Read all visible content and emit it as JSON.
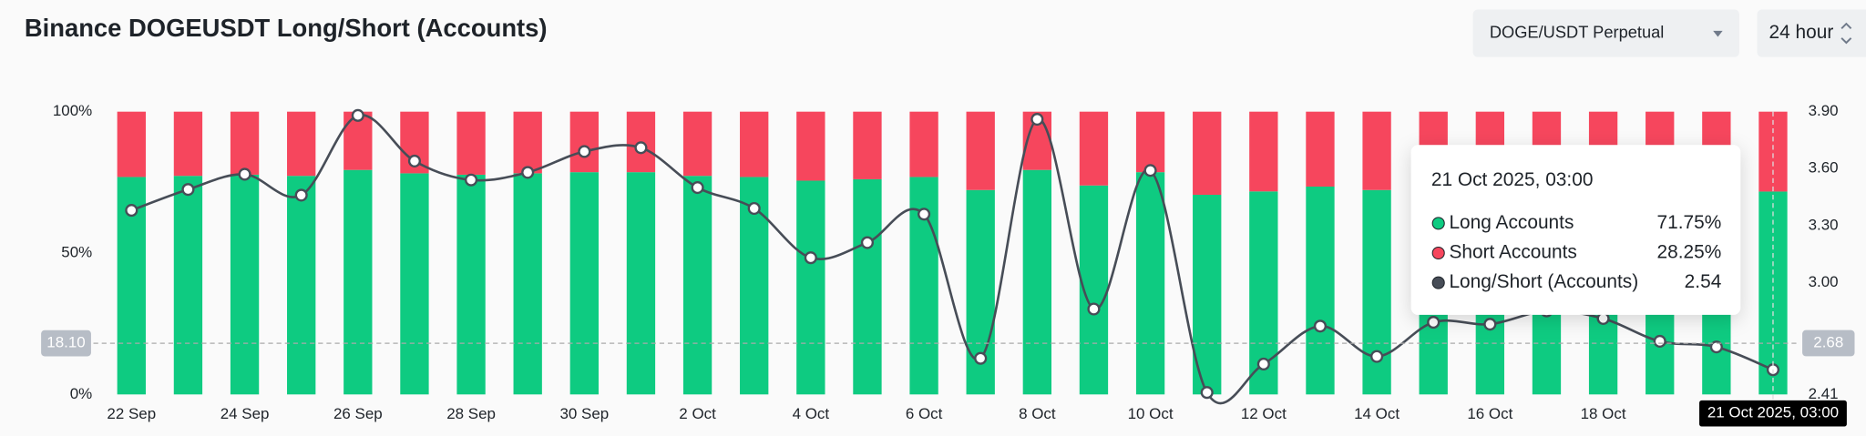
{
  "header": {
    "dropdown": "DOGE/USDT Perpetual",
    "period": "24 hour"
  },
  "chart_data": {
    "type": "stacked-bar-line",
    "title": "Binance DOGEUSDT Long/Short (Accounts)",
    "categories": [
      "22 Sep",
      null,
      "24 Sep",
      null,
      "26 Sep",
      null,
      "28 Sep",
      null,
      "30 Sep",
      null,
      "2 Oct",
      null,
      "4 Oct",
      null,
      "6 Oct",
      null,
      "8 Oct",
      null,
      "10 Oct",
      null,
      "12 Oct",
      null,
      "14 Oct",
      null,
      "16 Oct",
      null,
      "18 Oct",
      null,
      null,
      null
    ],
    "series": [
      {
        "name": "Long Accounts",
        "color": "#0ecb81",
        "values": [
          76.9,
          77.3,
          77.7,
          77.3,
          79.4,
          78.2,
          77.7,
          78.2,
          78.6,
          78.6,
          77.3,
          76.9,
          75.6,
          76.1,
          76.9,
          72.3,
          79.4,
          73.9,
          78.6,
          70.6,
          71.8,
          73.5,
          72.3,
          73.6,
          73.5,
          74.0,
          73.8,
          72.9,
          72.7,
          71.75
        ]
      },
      {
        "name": "Short Accounts",
        "color": "#f6465d",
        "values": [
          23.1,
          22.7,
          22.3,
          22.7,
          20.6,
          21.8,
          22.3,
          21.8,
          21.4,
          21.4,
          22.7,
          23.1,
          24.4,
          23.9,
          23.1,
          27.7,
          20.6,
          26.1,
          21.4,
          29.4,
          28.2,
          26.5,
          27.7,
          26.4,
          26.5,
          26.0,
          26.2,
          27.1,
          27.3,
          28.25
        ]
      },
      {
        "name": "Long/Short (Accounts)",
        "color": "#474d57",
        "axis": "y2",
        "values": [
          3.38,
          3.49,
          3.57,
          3.46,
          3.88,
          3.64,
          3.54,
          3.58,
          3.69,
          3.71,
          3.5,
          3.39,
          3.13,
          3.21,
          3.36,
          2.6,
          3.86,
          2.86,
          3.59,
          2.42,
          2.57,
          2.77,
          2.61,
          2.79,
          2.78,
          2.85,
          2.81,
          2.69,
          2.66,
          2.54
        ]
      }
    ],
    "ylim": [
      0,
      100
    ],
    "yticks": [
      {
        "value": 0,
        "label": "0%"
      },
      {
        "value": 50,
        "label": "50%"
      },
      {
        "value": 100,
        "label": "100%"
      }
    ],
    "y2lim": [
      2.41,
      3.9
    ],
    "y2ticks": [
      2.41,
      {
        "value": 3.0,
        "label": "3.00"
      },
      {
        "value": 3.3,
        "label": "3.30"
      },
      {
        "value": 3.6,
        "label": "3.60"
      },
      {
        "value": 3.9,
        "label": "3.90"
      }
    ],
    "grid": false,
    "crosshair": {
      "y": {
        "value": 18.1,
        "label": "18.10"
      },
      "y2": 2.68,
      "x_label": "21 Oct 2025, 03:00"
    },
    "tooltip": {
      "title": "21 Oct 2025, 03:00",
      "values": [
        "71.75%",
        "28.25%",
        "2.54"
      ]
    }
  }
}
